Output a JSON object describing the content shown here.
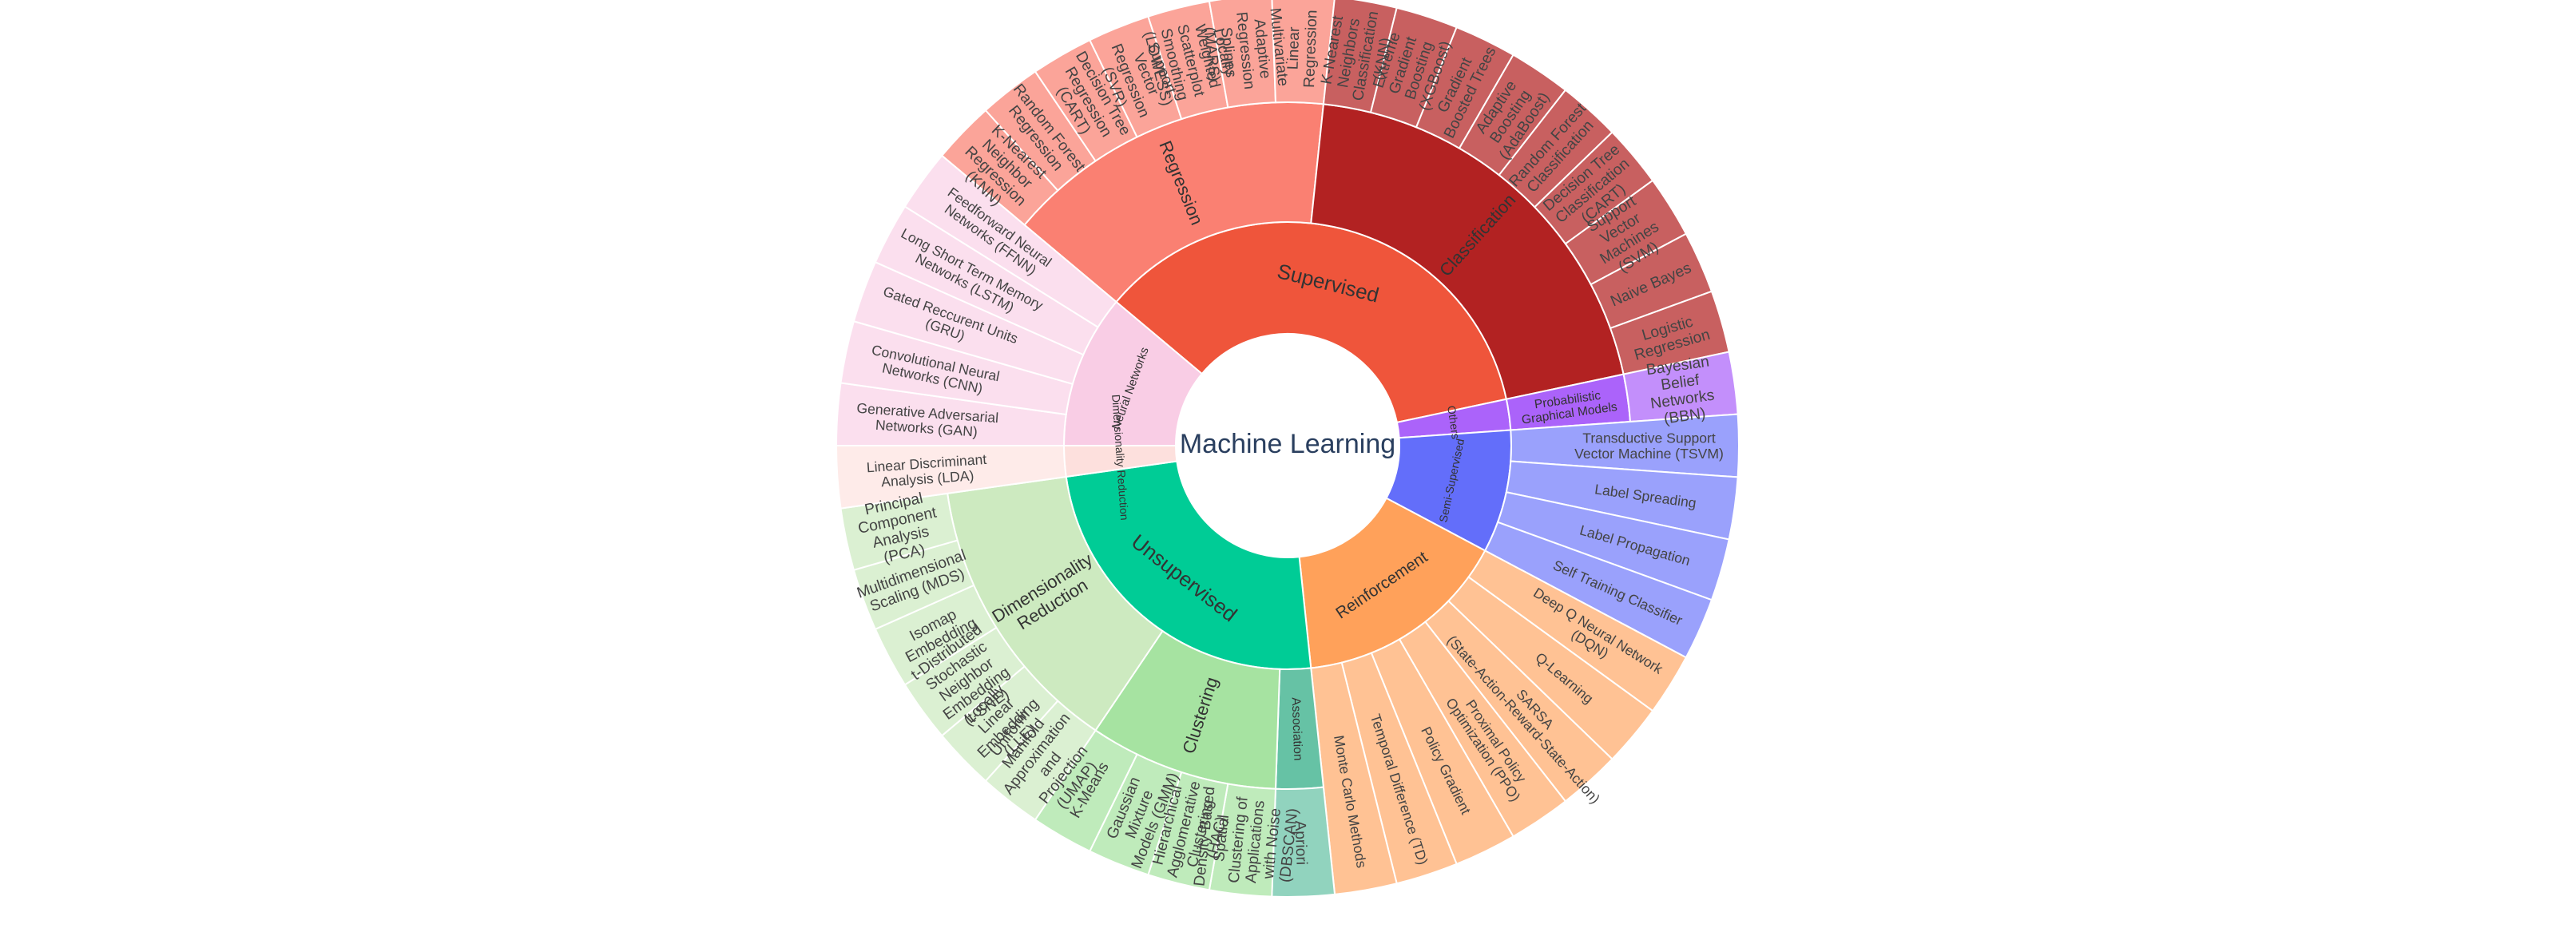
{
  "chart_data": {
    "type": "sunburst",
    "title": "",
    "root": "Machine Learning",
    "children": [
      {
        "name": "Supervised",
        "color": "#ef553b",
        "children": [
          {
            "name": "Regression",
            "color": "#fa8072",
            "children": [
              {
                "name": "K-Nearest Neighbor Regression (KNN)",
                "value": 1
              },
              {
                "name": "Random Forest Regression",
                "value": 1
              },
              {
                "name": "Decision Tree Regression (CART)",
                "value": 1
              },
              {
                "name": "Support Vector Regression (SVR)",
                "value": 1
              },
              {
                "name": "Locally Weighted Scatterplot Smoothing (LOWESS)",
                "value": 1
              },
              {
                "name": "Multivariate Adaptive Regression Splines (MARS)",
                "value": 1
              },
              {
                "name": "Linear Regression",
                "value": 1
              }
            ]
          },
          {
            "name": "Classification",
            "color": "#b22222",
            "children": [
              {
                "name": "K-Nearest Neighbors Classification (KNN)",
                "value": 1
              },
              {
                "name": "Extreme Gradient Boosting (XGBoost)",
                "value": 1
              },
              {
                "name": "Gradient Boosted Trees",
                "value": 1
              },
              {
                "name": "Adaptive Boosting (AdaBoost)",
                "value": 1
              },
              {
                "name": "Random Forest Classification",
                "value": 1
              },
              {
                "name": "Decision Tree Classification (CART)",
                "value": 1
              },
              {
                "name": "Support Vector Machines (SVM)",
                "value": 1
              },
              {
                "name": "Naive Bayes",
                "value": 1
              },
              {
                "name": "Logistic Regression",
                "value": 1
              }
            ]
          }
        ]
      },
      {
        "name": "Others",
        "color": "#ab63fa",
        "children": [
          {
            "name": "Probabilistic Graphical Models",
            "color": "#ab63fa",
            "children": [
              {
                "name": "Bayesian Belief Networks (BBN)",
                "value": 1
              }
            ]
          }
        ]
      },
      {
        "name": "Semi-Supervised",
        "color": "#636efa",
        "children": [
          {
            "name": "Transductive Support Vector Machine (TSVM)",
            "value": 1
          },
          {
            "name": "Label Spreading",
            "value": 1
          },
          {
            "name": "Label Propagation",
            "value": 1
          },
          {
            "name": "Self Training Classifier",
            "value": 1
          }
        ]
      },
      {
        "name": "Reinforcement",
        "color": "#ffa15a",
        "children": [
          {
            "name": "Deep Q Neural Network (DQN)",
            "value": 1
          },
          {
            "name": "Q-Learning",
            "value": 1
          },
          {
            "name": "SARSA (State-Action-Reward-State-Action)",
            "value": 1
          },
          {
            "name": "Proximal Policy Optimization (PPO)",
            "value": 1
          },
          {
            "name": "Policy Gradient",
            "value": 1
          },
          {
            "name": "Temporal Difference (TD)",
            "value": 1
          },
          {
            "name": "Monte Carlo Methods",
            "value": 1
          }
        ]
      },
      {
        "name": "Unsupervised",
        "color": "#00cc96",
        "children": [
          {
            "name": "Association",
            "color": "#66c2a5",
            "children": [
              {
                "name": "Apriori",
                "value": 1
              }
            ]
          },
          {
            "name": "Clustering",
            "color": "#a6e3a1",
            "children": [
              {
                "name": "Density-Based Spatial Clustering of Applications with Noise (DBSCAN)",
                "value": 1
              },
              {
                "name": "Hierarchical Agglomerative Clustering (HAC)",
                "value": 1
              },
              {
                "name": "Gaussian Mixture Models (GMM)",
                "value": 1
              },
              {
                "name": "K-Means",
                "value": 1
              }
            ]
          },
          {
            "name": "Dimensionality Reduction",
            "color": "#cdeac0",
            "children": [
              {
                "name": "Uniform Manifold Approximation and Projection (UMAP)",
                "value": 1
              },
              {
                "name": "Locally Linear Embedding (LLE)",
                "value": 1
              },
              {
                "name": "t-Distributed Stochastic Neighbor Embedding (t-SNE)",
                "value": 1
              },
              {
                "name": "Isomap Embedding",
                "value": 1
              },
              {
                "name": "Multidimensional Scaling (MDS)",
                "value": 1
              },
              {
                "name": "Principal Component Analysis (PCA)",
                "value": 1
              }
            ]
          }
        ]
      },
      {
        "name": "Dimensionality Reduction",
        "color": "#fde0dd",
        "children": [
          {
            "name": "Linear Discriminant Analysis (LDA)",
            "value": 1
          }
        ]
      },
      {
        "name": "Neural Networks",
        "color": "#f9cde5",
        "children": [
          {
            "name": "Generative Adversarial Networks (GAN)",
            "value": 1
          },
          {
            "name": "Convolutional Neural Networks (CNN)",
            "value": 1
          },
          {
            "name": "Gated Reccurent Units (GRU)",
            "value": 1
          },
          {
            "name": "Long Short Term Memory Networks (LSTM)",
            "value": 1
          },
          {
            "name": "Feedforward Neural Networks (FFNN)",
            "value": 1
          }
        ]
      }
    ]
  }
}
